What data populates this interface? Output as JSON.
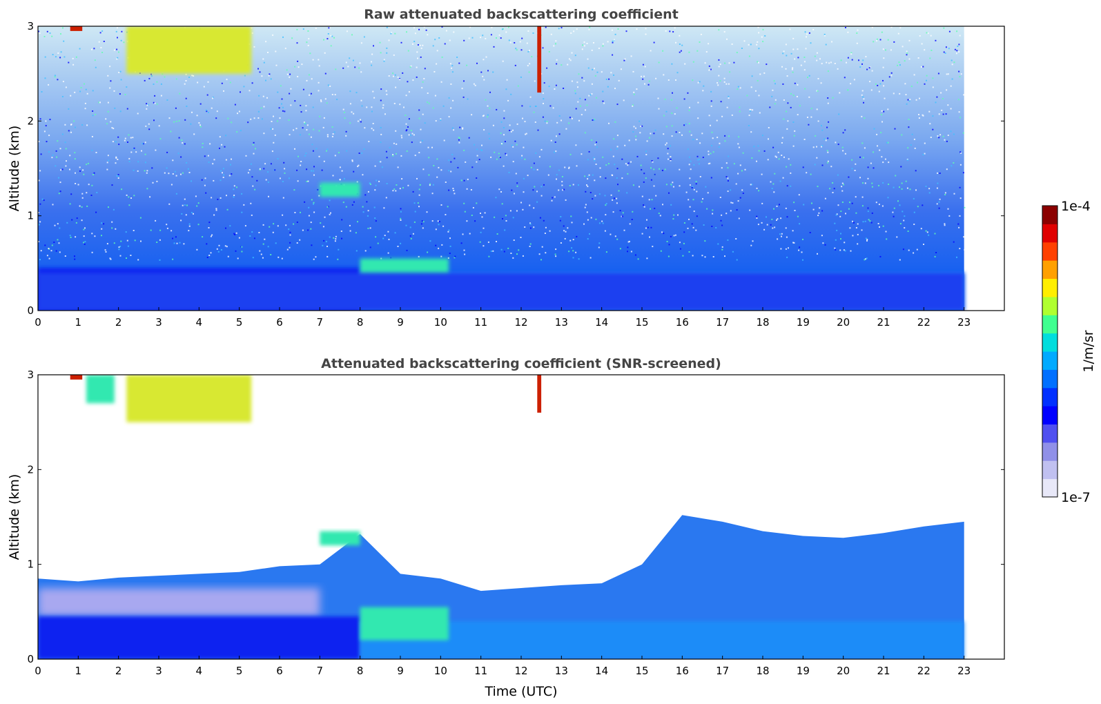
{
  "chart_data": [
    {
      "type": "heatmap",
      "title": "Raw attenuated backscattering coefficient",
      "xlabel": "",
      "ylabel": "Altitude (km)",
      "xlim": [
        0,
        24
      ],
      "ylim": [
        0,
        3
      ],
      "x_ticks": [
        "0",
        "1",
        "2",
        "3",
        "4",
        "5",
        "6",
        "7",
        "8",
        "9",
        "10",
        "11",
        "12",
        "13",
        "14",
        "15",
        "16",
        "17",
        "18",
        "19",
        "20",
        "21",
        "22",
        "23"
      ],
      "y_ticks": [
        "0",
        "1",
        "2",
        "3"
      ],
      "data_extent_x": [
        0,
        23
      ],
      "screened": false,
      "features": [
        {
          "time": [
            0.8,
            1.1
          ],
          "altitude": [
            2.95,
            3.0
          ],
          "level": "max"
        },
        {
          "time": [
            2.2,
            5.3
          ],
          "altitude": [
            2.5,
            3.0
          ],
          "level": "high"
        },
        {
          "time": [
            12.4,
            12.5
          ],
          "altitude": [
            2.3,
            3.0
          ],
          "level": "max"
        },
        {
          "time": [
            8.0,
            10.2
          ],
          "altitude": [
            0.2,
            0.55
          ],
          "level": "mid"
        },
        {
          "time": [
            7.0,
            8.0
          ],
          "altitude": [
            1.2,
            1.35
          ],
          "level": "mid"
        },
        {
          "time": [
            0,
            23
          ],
          "altitude": [
            0,
            0.4
          ],
          "level": "low"
        }
      ]
    },
    {
      "type": "heatmap",
      "title": "Attenuated backscattering coefficient (SNR-screened)",
      "xlabel": "Time (UTC)",
      "ylabel": "Altitude (km)",
      "xlim": [
        0,
        24
      ],
      "ylim": [
        0,
        3
      ],
      "x_ticks": [
        "0",
        "1",
        "2",
        "3",
        "4",
        "5",
        "6",
        "7",
        "8",
        "9",
        "10",
        "11",
        "12",
        "13",
        "14",
        "15",
        "16",
        "17",
        "18",
        "19",
        "20",
        "21",
        "22",
        "23"
      ],
      "y_ticks": [
        "0",
        "1",
        "2",
        "3"
      ],
      "data_extent_x": [
        0,
        23
      ],
      "screened": true,
      "boundary_layer_top_km": [
        [
          0,
          0.85
        ],
        [
          1,
          0.82
        ],
        [
          2,
          0.86
        ],
        [
          3,
          0.88
        ],
        [
          4,
          0.9
        ],
        [
          5,
          0.92
        ],
        [
          6,
          0.98
        ],
        [
          7,
          1.0
        ],
        [
          8,
          1.32
        ],
        [
          9,
          0.9
        ],
        [
          10,
          0.85
        ],
        [
          11,
          0.72
        ],
        [
          12,
          0.75
        ],
        [
          13,
          0.78
        ],
        [
          14,
          0.8
        ],
        [
          15,
          1.0
        ],
        [
          16,
          1.52
        ],
        [
          17,
          1.45
        ],
        [
          18,
          1.35
        ],
        [
          19,
          1.3
        ],
        [
          20,
          1.28
        ],
        [
          21,
          1.33
        ],
        [
          22,
          1.4
        ],
        [
          23,
          1.45
        ]
      ],
      "features": [
        {
          "time": [
            0.8,
            1.1
          ],
          "altitude": [
            2.95,
            3.0
          ],
          "level": "max"
        },
        {
          "time": [
            1.2,
            1.9
          ],
          "altitude": [
            2.7,
            3.0
          ],
          "level": "mid"
        },
        {
          "time": [
            2.2,
            5.3
          ],
          "altitude": [
            2.5,
            3.0
          ],
          "level": "high"
        },
        {
          "time": [
            12.4,
            12.5
          ],
          "altitude": [
            2.6,
            3.0
          ],
          "level": "max"
        },
        {
          "time": [
            8.0,
            10.2
          ],
          "altitude": [
            0.2,
            0.55
          ],
          "level": "mid"
        },
        {
          "time": [
            7.0,
            8.0
          ],
          "altitude": [
            1.2,
            1.35
          ],
          "level": "mid"
        }
      ]
    }
  ],
  "colorbar": {
    "max_label": "1e-4",
    "min_label": "1e-7",
    "label": "1/m/sr",
    "colors": [
      "#e8e8f8",
      "#c0c0f0",
      "#9090e8",
      "#5050f0",
      "#0000ff",
      "#0030ff",
      "#0070ff",
      "#00aaff",
      "#00dddd",
      "#40ff90",
      "#b0ff30",
      "#ffee00",
      "#ffa000",
      "#ff4000",
      "#e00000",
      "#8b0000"
    ]
  }
}
